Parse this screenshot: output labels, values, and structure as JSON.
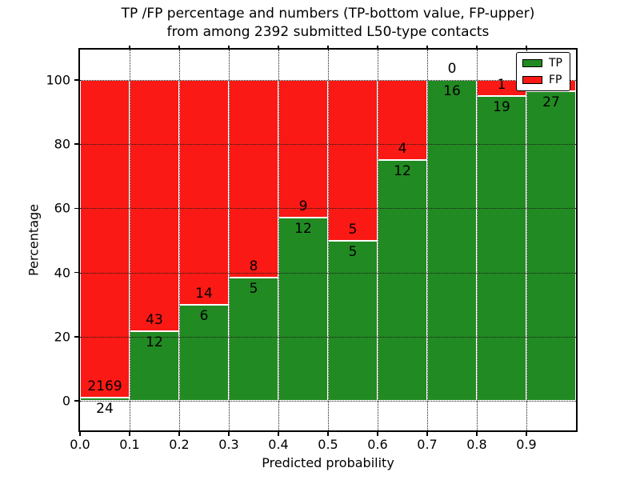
{
  "title": {
    "line1": "TP /FP percentage and numbers (TP-bottom value, FP-upper)",
    "line2": "from among 2392 submitted L50-type contacts"
  },
  "axes": {
    "xlabel": "Predicted probability",
    "ylabel": "Percentage",
    "x_tick_labels": [
      "0.0",
      "0.1",
      "0.2",
      "0.3",
      "0.4",
      "0.5",
      "0.6",
      "0.7",
      "0.8",
      "0.9"
    ],
    "x_tick_values": [
      0.0,
      0.1,
      0.2,
      0.3,
      0.4,
      0.5,
      0.6,
      0.7,
      0.8,
      0.9
    ],
    "y_tick_labels": [
      "0",
      "20",
      "40",
      "60",
      "80",
      "100"
    ],
    "y_tick_values": [
      0,
      20,
      40,
      60,
      80,
      100
    ]
  },
  "legend": {
    "items": [
      {
        "label": "TP",
        "color": "#228a22"
      },
      {
        "label": "FP",
        "color": "#fa1914"
      }
    ]
  },
  "colors": {
    "tp_green": "#228a22",
    "fp_red": "#fa1914",
    "annotation_text": "#000000"
  },
  "chart_data": {
    "type": "bar",
    "stacked": true,
    "normalized": "each bin scaled to 100%",
    "title": "TP /FP percentage and numbers (TP-bottom value, FP-upper) from among 2392 submitted L50-type contacts",
    "xlabel": "Predicted probability",
    "ylabel": "Percentage",
    "xlim": [
      0.0,
      1.0
    ],
    "ylim": [
      -9.2,
      109.5
    ],
    "grid": true,
    "grid_style": "dotted",
    "legend_position": "upper right",
    "total_contacts": 2392,
    "bin_width": 0.1,
    "bins": [
      {
        "range": [
          0.0,
          0.1
        ],
        "tp": 24,
        "fp": 2169,
        "tp_percent": 1.09,
        "fp_label_visible": true
      },
      {
        "range": [
          0.1,
          0.2
        ],
        "tp": 12,
        "fp": 43,
        "tp_percent": 21.82,
        "fp_label_visible": true
      },
      {
        "range": [
          0.2,
          0.3
        ],
        "tp": 6,
        "fp": 14,
        "tp_percent": 30.0,
        "fp_label_visible": true
      },
      {
        "range": [
          0.3,
          0.4
        ],
        "tp": 5,
        "fp": 8,
        "tp_percent": 38.46,
        "fp_label_visible": true
      },
      {
        "range": [
          0.4,
          0.5
        ],
        "tp": 12,
        "fp": 9,
        "tp_percent": 57.14,
        "fp_label_visible": true
      },
      {
        "range": [
          0.5,
          0.6
        ],
        "tp": 5,
        "fp": 5,
        "tp_percent": 50.0,
        "fp_label_visible": true
      },
      {
        "range": [
          0.6,
          0.7
        ],
        "tp": 12,
        "fp": 4,
        "tp_percent": 75.0,
        "fp_label_visible": true
      },
      {
        "range": [
          0.7,
          0.8
        ],
        "tp": 16,
        "fp": 0,
        "tp_percent": 100.0,
        "fp_label_visible": true
      },
      {
        "range": [
          0.8,
          0.9
        ],
        "tp": 19,
        "fp": 1,
        "tp_percent": 95.0,
        "fp_label_visible": true
      },
      {
        "range": [
          0.9,
          1.0
        ],
        "tp": 27,
        "fp": 1,
        "tp_percent": 96.43,
        "fp_label_visible": false
      }
    ],
    "series": [
      {
        "name": "TP",
        "color": "#228a22",
        "counts": [
          24,
          12,
          6,
          5,
          12,
          5,
          12,
          16,
          19,
          27
        ]
      },
      {
        "name": "FP",
        "color": "#fa1914",
        "counts": [
          2169,
          43,
          14,
          8,
          9,
          5,
          4,
          0,
          1,
          1
        ]
      }
    ]
  }
}
